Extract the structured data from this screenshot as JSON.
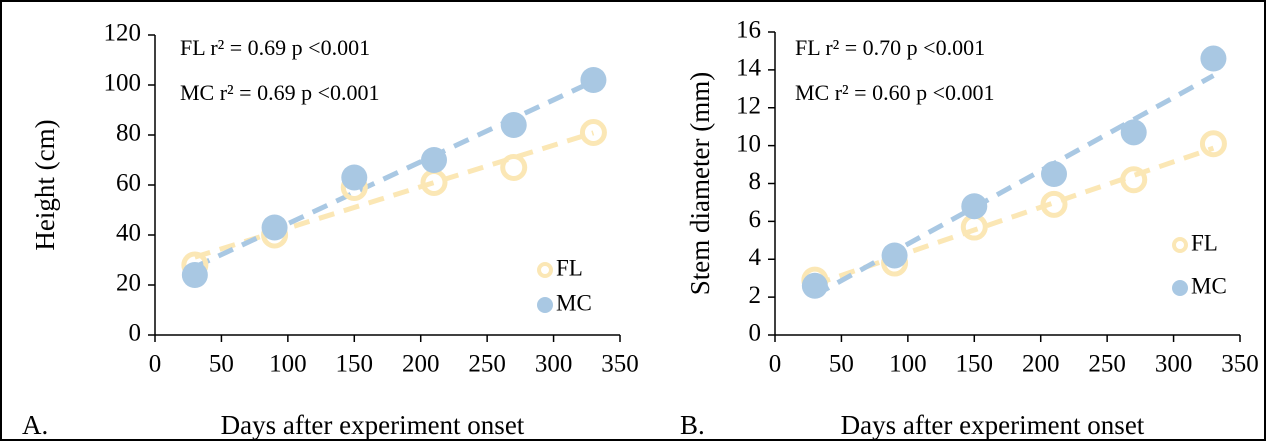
{
  "chart_data": [
    {
      "type": "scatter",
      "panel_label": "A.",
      "xlabel": "Days after experiment onset",
      "ylabel": "Height (cm)",
      "annotations": [
        "FL r² = 0.69 p <0.001",
        "MC r² = 0.69 p <0.001"
      ],
      "x": [
        30,
        90,
        150,
        210,
        270,
        330
      ],
      "series": [
        {
          "name": "FL",
          "color": "#fbe7b5",
          "marker": "open",
          "values": [
            28,
            40,
            59,
            61,
            67,
            81
          ]
        },
        {
          "name": "MC",
          "color": "#a9c8e3",
          "marker": "filled",
          "values": [
            24,
            43,
            63,
            70,
            84,
            102
          ]
        }
      ],
      "trendline": "linear",
      "xlim": [
        0,
        350
      ],
      "xticks": [
        0,
        50,
        100,
        150,
        200,
        250,
        300,
        350
      ],
      "ylim": [
        0,
        120
      ],
      "yticks": [
        0,
        20,
        40,
        60,
        80,
        100,
        120
      ],
      "legend": "lower right"
    },
    {
      "type": "scatter",
      "panel_label": "B.",
      "xlabel": "Days after experiment onset",
      "ylabel": "Stem diameter (mm)",
      "annotations": [
        "FL r² = 0.70 p <0.001",
        "MC r² = 0.60 p <0.001"
      ],
      "x": [
        30,
        90,
        150,
        210,
        270,
        330
      ],
      "series": [
        {
          "name": "FL",
          "color": "#fbe7b5",
          "marker": "open",
          "values": [
            2.9,
            3.8,
            5.7,
            6.9,
            8.2,
            10.1
          ]
        },
        {
          "name": "MC",
          "color": "#a9c8e3",
          "marker": "filled",
          "values": [
            2.6,
            4.2,
            6.8,
            8.5,
            10.7,
            14.6
          ]
        }
      ],
      "trendline": "linear",
      "xlim": [
        0,
        350
      ],
      "xticks": [
        0,
        50,
        100,
        150,
        200,
        250,
        300,
        350
      ],
      "ylim": [
        0,
        16
      ],
      "yticks": [
        0,
        2,
        4,
        6,
        8,
        10,
        12,
        14,
        16
      ],
      "legend": "lower right"
    }
  ]
}
